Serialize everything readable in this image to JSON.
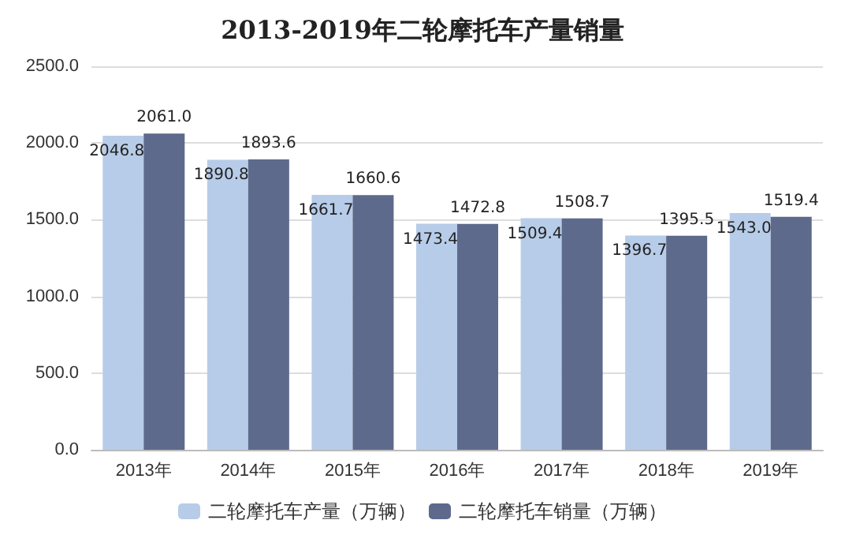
{
  "chart_data": {
    "type": "bar",
    "title": "2013-2019年二轮摩托车产量销量",
    "categories": [
      "2013年",
      "2014年",
      "2015年",
      "2016年",
      "2017年",
      "2018年",
      "2019年"
    ],
    "series": [
      {
        "name": "二轮摩托车产量（万辆）",
        "color": "#b7cce8",
        "values": [
          2046.8,
          1890.8,
          1661.7,
          1473.4,
          1509.4,
          1396.7,
          1543.0
        ],
        "value_labels": [
          "2046.8",
          "1890.8",
          "1661.7",
          "1473.4",
          "1509.4",
          "1396.7",
          "1543.0"
        ]
      },
      {
        "name": "二轮摩托车销量（万辆）",
        "color": "#5e6a8c",
        "values": [
          2061.0,
          1893.6,
          1660.6,
          1472.8,
          1508.7,
          1395.5,
          1519.4
        ],
        "value_labels": [
          "2061.0",
          "1893.6",
          "1660.6",
          "1472.8",
          "1508.7",
          "1395.5",
          "1519.4"
        ]
      }
    ],
    "ylim": [
      0,
      2500
    ],
    "yticks": [
      {
        "value": 0,
        "label": "0.0"
      },
      {
        "value": 500,
        "label": "500.0"
      },
      {
        "value": 1000,
        "label": "1000.0"
      },
      {
        "value": 1500,
        "label": "1500.0"
      },
      {
        "value": 2000,
        "label": "2000.0"
      },
      {
        "value": 2500,
        "label": "2500.0"
      }
    ],
    "grid": "y",
    "legend": "bottom"
  }
}
